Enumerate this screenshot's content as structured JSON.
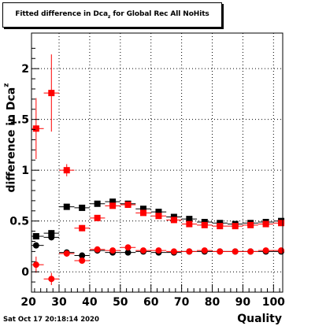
{
  "chart_data": {
    "type": "scatter",
    "title_main": "Fitted difference in Dca",
    "title_sub": "z",
    "title_rest": " for Global Rec All NoHits",
    "xlabel": "Quality",
    "ylabel_main": "difference in Dca",
    "ylabel_sub": "z",
    "xlim": [
      21,
      103
    ],
    "ylim": [
      -0.2,
      2.35
    ],
    "grid": true,
    "x_ticks": [
      {
        "value": 20,
        "label": "20"
      },
      {
        "value": 30,
        "label": "30"
      },
      {
        "value": 40,
        "label": "40"
      },
      {
        "value": 50,
        "label": "50"
      },
      {
        "value": 60,
        "label": "60"
      },
      {
        "value": 70,
        "label": "70"
      },
      {
        "value": 80,
        "label": "80"
      },
      {
        "value": 90,
        "label": "90"
      },
      {
        "value": 100,
        "label": "100"
      }
    ],
    "y_ticks": [
      {
        "value": 0,
        "label": "0"
      },
      {
        "value": 0.5,
        "label": "0.5"
      },
      {
        "value": 1,
        "label": "1"
      },
      {
        "value": 1.5,
        "label": "1.5"
      },
      {
        "value": 2,
        "label": "2"
      }
    ],
    "series": [
      {
        "color": "#000000",
        "marker": "square",
        "points": [
          {
            "x": 22.5,
            "y": 0.35,
            "err": 0.02
          },
          {
            "x": 27.5,
            "y": 0.38,
            "err": 0.03
          },
          {
            "x": 32.5,
            "y": 0.64,
            "err": 0.02
          },
          {
            "x": 37.5,
            "y": 0.63,
            "err": 0.02
          },
          {
            "x": 42.5,
            "y": 0.67,
            "err": 0.02
          },
          {
            "x": 47.5,
            "y": 0.69,
            "err": 0.02
          },
          {
            "x": 52.5,
            "y": 0.67,
            "err": 0.02
          },
          {
            "x": 57.5,
            "y": 0.62,
            "err": 0.02
          },
          {
            "x": 62.5,
            "y": 0.59,
            "err": 0.02
          },
          {
            "x": 67.5,
            "y": 0.54,
            "err": 0.02
          },
          {
            "x": 72.5,
            "y": 0.52,
            "err": 0.02
          },
          {
            "x": 77.5,
            "y": 0.49,
            "err": 0.02
          },
          {
            "x": 82.5,
            "y": 0.48,
            "err": 0.02
          },
          {
            "x": 87.5,
            "y": 0.47,
            "err": 0.02
          },
          {
            "x": 92.5,
            "y": 0.48,
            "err": 0.02
          },
          {
            "x": 97.5,
            "y": 0.49,
            "err": 0.02
          },
          {
            "x": 102.5,
            "y": 0.5,
            "err": 0.02
          }
        ]
      },
      {
        "color": "#000000",
        "marker": "circle",
        "points": [
          {
            "x": 22.5,
            "y": 0.26,
            "err": 0.03
          },
          {
            "x": 27.5,
            "y": 0.34,
            "err": 0.03
          },
          {
            "x": 32.5,
            "y": 0.19,
            "err": 0.02
          },
          {
            "x": 37.5,
            "y": 0.16,
            "err": 0.02
          },
          {
            "x": 42.5,
            "y": 0.21,
            "err": 0.02
          },
          {
            "x": 47.5,
            "y": 0.19,
            "err": 0.02
          },
          {
            "x": 52.5,
            "y": 0.19,
            "err": 0.02
          },
          {
            "x": 57.5,
            "y": 0.2,
            "err": 0.02
          },
          {
            "x": 62.5,
            "y": 0.19,
            "err": 0.02
          },
          {
            "x": 67.5,
            "y": 0.19,
            "err": 0.01
          },
          {
            "x": 72.5,
            "y": 0.2,
            "err": 0.01
          },
          {
            "x": 77.5,
            "y": 0.2,
            "err": 0.01
          },
          {
            "x": 82.5,
            "y": 0.2,
            "err": 0.01
          },
          {
            "x": 87.5,
            "y": 0.2,
            "err": 0.01
          },
          {
            "x": 92.5,
            "y": 0.2,
            "err": 0.01
          },
          {
            "x": 97.5,
            "y": 0.2,
            "err": 0.01
          },
          {
            "x": 102.5,
            "y": 0.2,
            "err": 0.01
          }
        ]
      },
      {
        "color": "#ff0000",
        "marker": "square",
        "points": [
          {
            "x": 22.5,
            "y": 1.41,
            "err": 0.3
          },
          {
            "x": 27.5,
            "y": 1.76,
            "err": 0.38
          },
          {
            "x": 32.5,
            "y": 1.0,
            "err": 0.06
          },
          {
            "x": 37.5,
            "y": 0.43,
            "err": 0.03
          },
          {
            "x": 42.5,
            "y": 0.53,
            "err": 0.02
          },
          {
            "x": 47.5,
            "y": 0.65,
            "err": 0.02
          },
          {
            "x": 52.5,
            "y": 0.66,
            "err": 0.02
          },
          {
            "x": 57.5,
            "y": 0.58,
            "err": 0.02
          },
          {
            "x": 62.5,
            "y": 0.55,
            "err": 0.02
          },
          {
            "x": 67.5,
            "y": 0.51,
            "err": 0.02
          },
          {
            "x": 72.5,
            "y": 0.47,
            "err": 0.02
          },
          {
            "x": 77.5,
            "y": 0.46,
            "err": 0.02
          },
          {
            "x": 82.5,
            "y": 0.45,
            "err": 0.02
          },
          {
            "x": 87.5,
            "y": 0.45,
            "err": 0.02
          },
          {
            "x": 92.5,
            "y": 0.46,
            "err": 0.02
          },
          {
            "x": 97.5,
            "y": 0.47,
            "err": 0.02
          },
          {
            "x": 102.5,
            "y": 0.48,
            "err": 0.02
          }
        ]
      },
      {
        "color": "#ff0000",
        "marker": "circle",
        "points": [
          {
            "x": 22.5,
            "y": 0.07,
            "err": 0.08
          },
          {
            "x": 27.5,
            "y": -0.07,
            "err": 0.06
          },
          {
            "x": 32.5,
            "y": 0.18,
            "err": 0.03
          },
          {
            "x": 37.5,
            "y": 0.11,
            "err": 0.02
          },
          {
            "x": 42.5,
            "y": 0.22,
            "err": 0.02
          },
          {
            "x": 47.5,
            "y": 0.21,
            "err": 0.02
          },
          {
            "x": 52.5,
            "y": 0.24,
            "err": 0.02
          },
          {
            "x": 57.5,
            "y": 0.21,
            "err": 0.02
          },
          {
            "x": 62.5,
            "y": 0.21,
            "err": 0.02
          },
          {
            "x": 67.5,
            "y": 0.2,
            "err": 0.01
          },
          {
            "x": 72.5,
            "y": 0.2,
            "err": 0.01
          },
          {
            "x": 77.5,
            "y": 0.21,
            "err": 0.01
          },
          {
            "x": 82.5,
            "y": 0.2,
            "err": 0.01
          },
          {
            "x": 87.5,
            "y": 0.2,
            "err": 0.01
          },
          {
            "x": 92.5,
            "y": 0.2,
            "err": 0.01
          },
          {
            "x": 97.5,
            "y": 0.21,
            "err": 0.01
          },
          {
            "x": 102.5,
            "y": 0.21,
            "err": 0.01
          }
        ]
      }
    ]
  },
  "footer": {
    "timestamp": "Sat Oct 17 20:18:14 2020"
  }
}
